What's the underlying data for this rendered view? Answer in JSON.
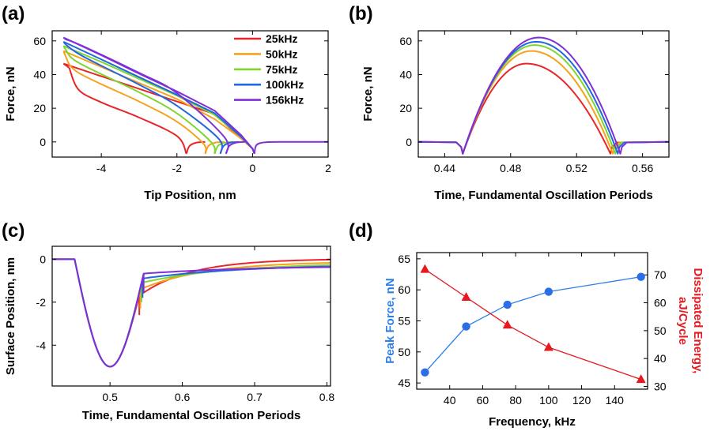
{
  "colors": {
    "red": "#e8262a",
    "orange": "#f5a21c",
    "green": "#7fd631",
    "blue": "#2266e0",
    "purple": "#7f2fd9",
    "peak_axis": "#2a7fe8",
    "energy_axis": "#e5191f",
    "marker_blue": "#2a6ee8"
  },
  "chart_data": [
    {
      "panel": "(a)",
      "type": "line",
      "xlabel": "Tip Position, nm",
      "ylabel": "Force, nN",
      "xlim": [
        -5.3,
        2
      ],
      "ylim": [
        -9,
        66
      ],
      "xticks": [
        -4,
        -2,
        0,
        2
      ],
      "yticks": [
        0,
        20,
        40,
        60
      ],
      "legend": {
        "placement": "top-right",
        "entries": [
          "25kHz",
          "50kHz",
          "75kHz",
          "100kHz",
          "156kHz"
        ]
      },
      "series": [
        {
          "name": "25kHz",
          "color": "red",
          "loaded": [
            [
              -5.0,
              46.5
            ],
            [
              -4.2,
              40.5
            ],
            [
              -3.0,
              31.5
            ],
            [
              -2.0,
              24.0
            ],
            [
              -1.0,
              16.5
            ],
            [
              -0.3,
              2.0
            ],
            [
              0.0,
              -4.0
            ],
            [
              0.05,
              -7.0
            ]
          ],
          "unload": [
            [
              -4.85,
              44.0
            ],
            [
              -4.6,
              31.0
            ],
            [
              -4.0,
              23.5
            ],
            [
              -3.0,
              14.5
            ],
            [
              -2.0,
              3.5
            ],
            [
              -1.75,
              -7.0
            ]
          ]
        },
        {
          "name": "50kHz",
          "color": "orange",
          "loaded": [
            [
              -5.0,
              54.0
            ],
            [
              -4.0,
              44.5
            ],
            [
              -3.0,
              35.0
            ],
            [
              -2.0,
              25.5
            ],
            [
              -1.0,
              13.5
            ],
            [
              -0.3,
              2.0
            ],
            [
              0.0,
              -4.0
            ],
            [
              0.05,
              -7.0
            ]
          ],
          "unload": [
            [
              -4.95,
              51.0
            ],
            [
              -4.6,
              41.0
            ],
            [
              -3.0,
              24.0
            ],
            [
              -2.0,
              12.0
            ],
            [
              -1.3,
              -1.0
            ],
            [
              -1.25,
              -7.0
            ]
          ]
        },
        {
          "name": "75kHz",
          "color": "green",
          "loaded": [
            [
              -5.0,
              57.0
            ],
            [
              -4.0,
              47.5
            ],
            [
              -3.0,
              37.5
            ],
            [
              -2.0,
              27.5
            ],
            [
              -1.0,
              16.0
            ],
            [
              -0.3,
              3.0
            ],
            [
              0.0,
              -4.0
            ],
            [
              0.05,
              -7.0
            ]
          ],
          "unload": [
            [
              -4.95,
              55.0
            ],
            [
              -4.6,
              47.0
            ],
            [
              -3.0,
              29.5
            ],
            [
              -2.0,
              17.0
            ],
            [
              -1.1,
              0.0
            ],
            [
              -1.0,
              -7.0
            ]
          ]
        },
        {
          "name": "100kHz",
          "color": "blue",
          "loaded": [
            [
              -5.0,
              59.5
            ],
            [
              -4.0,
              49.0
            ],
            [
              -3.0,
              38.5
            ],
            [
              -2.0,
              28.0
            ],
            [
              -1.0,
              17.0
            ],
            [
              -0.3,
              3.0
            ],
            [
              0.0,
              -4.0
            ],
            [
              0.05,
              -7.0
            ]
          ],
          "unload": [
            [
              -4.95,
              58.0
            ],
            [
              -4.5,
              51.0
            ],
            [
              -3.0,
              34.0
            ],
            [
              -2.0,
              21.5
            ],
            [
              -0.9,
              2.0
            ],
            [
              -0.85,
              -7.0
            ]
          ]
        },
        {
          "name": "156kHz",
          "color": "purple",
          "loaded": [
            [
              -5.0,
              62.0
            ],
            [
              -4.0,
              51.5
            ],
            [
              -3.0,
              40.5
            ],
            [
              -2.0,
              30.0
            ],
            [
              -1.0,
              18.5
            ],
            [
              -0.3,
              4.0
            ],
            [
              0.0,
              -4.0
            ],
            [
              0.05,
              -7.0
            ]
          ],
          "unload": [
            [
              -4.95,
              61.0
            ],
            [
              -4.5,
              57.0
            ],
            [
              -3.0,
              41.0
            ],
            [
              -2.0,
              29.0
            ],
            [
              -0.75,
              3.0
            ],
            [
              -0.7,
              -7.0
            ]
          ]
        }
      ],
      "baseline": [
        [
          0.05,
          -7.0
        ],
        [
          0.1,
          -2.0
        ],
        [
          0.3,
          -0.3
        ],
        [
          0.7,
          0.0
        ],
        [
          2.0,
          0.0
        ]
      ]
    },
    {
      "panel": "(b)",
      "type": "line",
      "xlabel": "Time, Fundamental Oscillation Periods",
      "ylabel": "Force, nN",
      "xlim": [
        0.424,
        0.576
      ],
      "ylim": [
        -9,
        66
      ],
      "xticks": [
        0.44,
        0.48,
        0.52,
        0.56
      ],
      "yticks": [
        0,
        20,
        40,
        60
      ],
      "series": [
        {
          "name": "25kHz",
          "color": "red",
          "peak": 46.5,
          "start": 0.451,
          "end": 0.5405,
          "peak_at": 0.4895
        },
        {
          "name": "50kHz",
          "color": "orange",
          "peak": 54.0,
          "start": 0.451,
          "end": 0.542,
          "peak_at": 0.4925
        },
        {
          "name": "75kHz",
          "color": "green",
          "peak": 57.5,
          "start": 0.451,
          "end": 0.5435,
          "peak_at": 0.4945
        },
        {
          "name": "100kHz",
          "color": "blue",
          "peak": 59.5,
          "start": 0.451,
          "end": 0.545,
          "peak_at": 0.4955
        },
        {
          "name": "156kHz",
          "color": "purple",
          "peak": 62.0,
          "start": 0.451,
          "end": 0.5465,
          "peak_at": 0.497
        }
      ]
    },
    {
      "panel": "(c)",
      "type": "line",
      "xlabel": "Time, Fundamental Oscillation Periods",
      "ylabel": "Surface Position, nm",
      "xlim": [
        0.42,
        0.805
      ],
      "ylim": [
        -5.9,
        0.6
      ],
      "xticks": [
        0.5,
        0.6,
        0.7,
        0.8
      ],
      "xticklabels": [
        "0.5",
        "0.6",
        "0.7",
        "0.8"
      ],
      "yticks": [
        0,
        -2,
        -4
      ],
      "indentation": {
        "start": 0.451,
        "min_at": 0.5,
        "min": -5.0
      },
      "series": [
        {
          "name": "25kHz",
          "color": "red",
          "release": 0.5405,
          "jump": -1.7,
          "end": -0.02,
          "tau": 0.07
        },
        {
          "name": "50kHz",
          "color": "orange",
          "release": 0.542,
          "jump": -1.4,
          "end": -0.17,
          "tau": 0.09
        },
        {
          "name": "75kHz",
          "color": "green",
          "release": 0.5435,
          "jump": -1.1,
          "end": -0.27,
          "tau": 0.12
        },
        {
          "name": "100kHz",
          "color": "blue",
          "release": 0.545,
          "jump": -0.9,
          "end": -0.34,
          "tau": 0.14
        },
        {
          "name": "156kHz",
          "color": "purple",
          "release": 0.5465,
          "jump": -0.67,
          "end": -0.37,
          "tau": 0.15
        }
      ]
    },
    {
      "panel": "(d)",
      "type": "scatter",
      "xlabel": "Frequency, kHz",
      "xlim": [
        20,
        160
      ],
      "xticks": [
        40,
        60,
        80,
        100,
        120,
        140
      ],
      "x": [
        25,
        50,
        75,
        100,
        156
      ],
      "series": [
        {
          "name": "Peak Force, nN",
          "axis": "left",
          "color": "peak_axis",
          "marker": "circle",
          "values": [
            46.7,
            54.1,
            57.6,
            59.7,
            62.1
          ]
        },
        {
          "name": "Dissipated Energy, aJ/Cycle",
          "axis": "right",
          "color": "energy_axis",
          "marker": "triangle",
          "values": [
            72,
            62,
            52,
            44,
            32.5
          ]
        }
      ],
      "ylabel_left": "Peak Force, nN",
      "ylim_left": [
        44,
        66
      ],
      "yticks_left": [
        45,
        50,
        55,
        60,
        65
      ],
      "ylabel_right": [
        "Dissipated Energy,",
        "aJ/Cycle"
      ],
      "ylim_right": [
        29,
        78
      ],
      "yticks_right": [
        30,
        40,
        50,
        60,
        70
      ]
    }
  ]
}
